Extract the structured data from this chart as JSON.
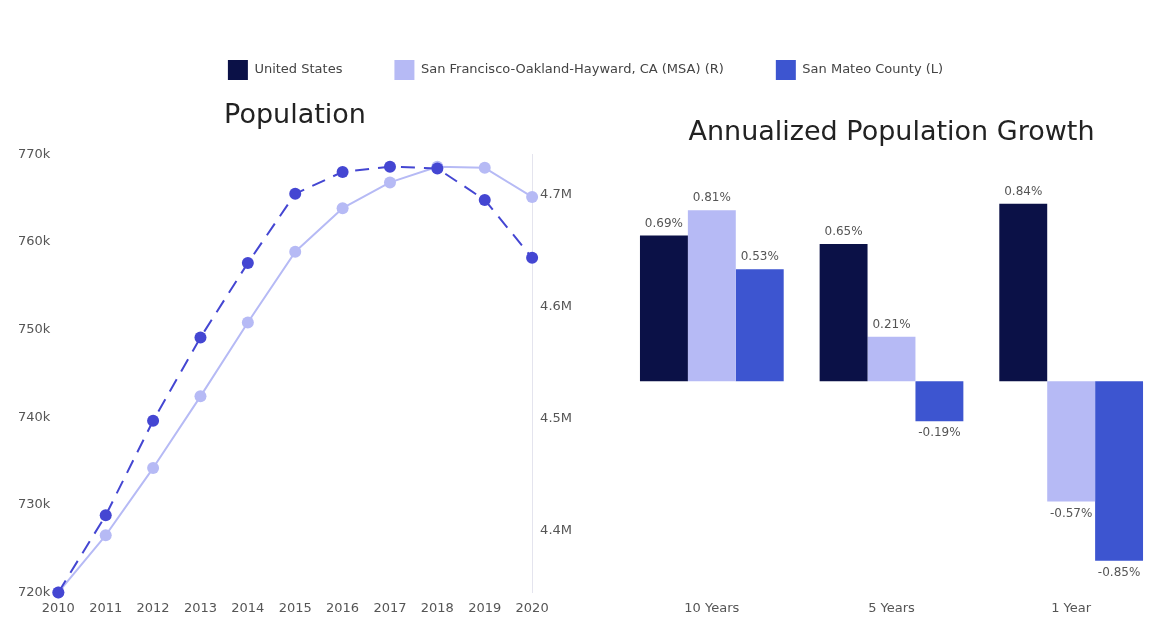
{
  "chart_data": [
    {
      "type": "line",
      "title": "Population",
      "categories": [
        "2010",
        "2011",
        "2012",
        "2013",
        "2014",
        "2015",
        "2016",
        "2017",
        "2018",
        "2019",
        "2020"
      ],
      "series": [
        {
          "color": "#b6baf5",
          "axis": "y2",
          "line_style": "solid",
          "values": [
            4345000,
            4396000,
            4456000,
            4520000,
            4586000,
            4649000,
            4688000,
            4711000,
            4725000,
            4724000,
            4698000
          ]
        },
        {
          "color": "#4446d2",
          "line_style": "dashed",
          "values": [
            720000,
            728800,
            739600,
            749100,
            757600,
            765500,
            768000,
            768600,
            768400,
            764800,
            758200
          ]
        }
      ],
      "ylim": [
        720000,
        770000
      ],
      "yticks": [
        {
          "value": 720000,
          "label": "720k"
        },
        {
          "value": 730000,
          "label": "730k"
        },
        {
          "value": 740000,
          "label": "740k"
        },
        {
          "value": 750000,
          "label": "750k"
        },
        {
          "value": 760000,
          "label": "760k"
        },
        {
          "value": 770000,
          "label": "770k"
        }
      ],
      "y2lim": [
        4345000,
        4736000
      ],
      "y2ticks": [
        {
          "value": 4400000,
          "label": "4.4M"
        },
        {
          "value": 4500000,
          "label": "4.5M"
        },
        {
          "value": 4600000,
          "label": "4.6M"
        },
        {
          "value": 4700000,
          "label": "4.7M"
        }
      ],
      "marker": "circle",
      "grid": false,
      "legend": false
    },
    {
      "type": "bar",
      "title": "Annualized Population Growth",
      "categories": [
        "10 Years",
        "5 Years",
        "1 Year"
      ],
      "series": [
        {
          "name": "United States",
          "color": "#0b1147",
          "values": [
            0.69,
            0.65,
            0.84
          ],
          "value_labels": [
            "0.69%",
            "0.65%",
            "0.84%"
          ]
        },
        {
          "name": "San Francisco-Oakland-Hayward, CA (MSA) (R)",
          "color": "#b6baf5",
          "values": [
            0.81,
            0.21,
            -0.57
          ],
          "value_labels": [
            "0.81%",
            "0.21%",
            "-0.57%"
          ]
        },
        {
          "name": "San Mateo County (L)",
          "color": "#3d55d0",
          "values": [
            0.53,
            -0.19,
            -0.85
          ],
          "value_labels": [
            "0.53%",
            "-0.19%",
            "-0.85%"
          ]
        }
      ],
      "tick_labels": "x",
      "grid": false,
      "legend": "top"
    }
  ]
}
